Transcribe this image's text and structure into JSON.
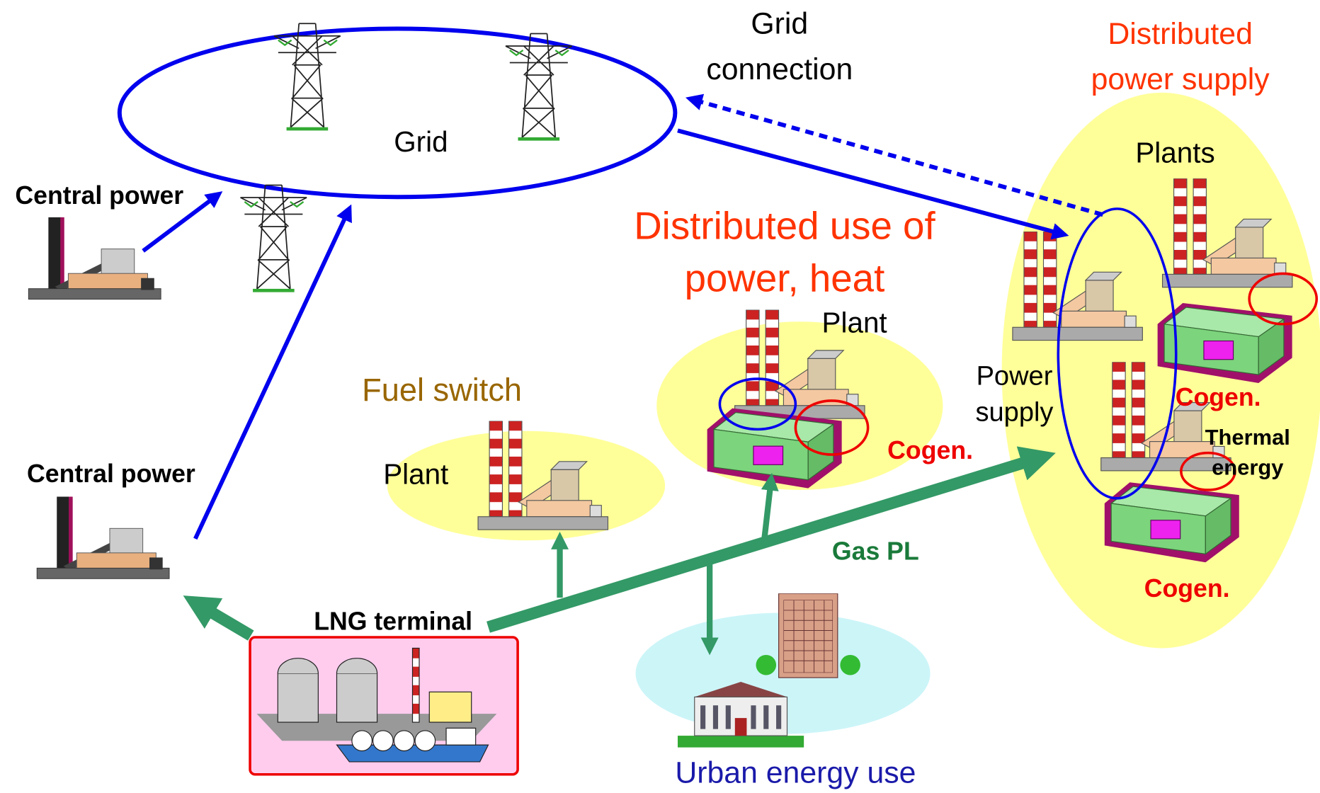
{
  "grid": {
    "label": "Grid",
    "connection": [
      "Grid",
      "connection"
    ]
  },
  "central_power": [
    "Central power",
    "Central power"
  ],
  "distributed_use": {
    "title": [
      "Distributed use of",
      "power, heat"
    ],
    "plant": "Plant",
    "cogen": "Cogen."
  },
  "fuel_switch": {
    "title": "Fuel switch",
    "plant": "Plant"
  },
  "distributed_supply": {
    "title": [
      "Distributed",
      "power supply"
    ],
    "plants": "Plants",
    "power_supply": [
      "Power",
      "supply"
    ],
    "cogen": [
      "Cogen.",
      "Cogen."
    ],
    "thermal_energy": [
      "Thermal",
      "energy"
    ]
  },
  "gas_pl": "Gas PL",
  "lng_terminal": "LNG terminal",
  "urban_energy_use": "Urban energy use"
}
